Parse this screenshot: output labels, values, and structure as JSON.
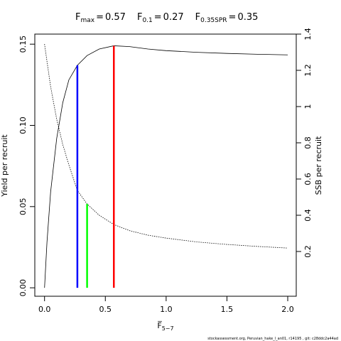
{
  "chart_data": {
    "type": "line",
    "relation": "=",
    "reference_lines": [
      {
        "label": "F",
        "sub": "max",
        "x": 0.57,
        "top": 0.149,
        "color": "#ff0000"
      },
      {
        "label": "F",
        "sub": "0.1",
        "x": 0.27,
        "top": 0.137,
        "color": "#0000ff"
      },
      {
        "label": "F",
        "sub": "0.35SPR",
        "x": 0.35,
        "top": 0.0516,
        "color": "#00ff00"
      }
    ],
    "xlabel": "F̅",
    "xlabel_sub": "5−7",
    "ylabel": "Yield per recruit",
    "y2label": "SSB per recruit",
    "footer": "stockassessment.org, Peruvian_hake_l_an01, r14195 , git: c28ddc2a44ad",
    "x": [
      0,
      0.02,
      0.05,
      0.1,
      0.15,
      0.2,
      0.27,
      0.35,
      0.45,
      0.57,
      0.7,
      0.85,
      1.0,
      1.25,
      1.5,
      1.75,
      2.0
    ],
    "series": [
      {
        "name": "Yield per recruit",
        "color": "#000000",
        "dash": "solid",
        "values": [
          0,
          0.028,
          0.059,
          0.092,
          0.114,
          0.128,
          0.137,
          0.143,
          0.147,
          0.149,
          0.1485,
          0.147,
          0.146,
          0.145,
          0.1443,
          0.1438,
          0.1434
        ]
      },
      {
        "name": "SSB per recruit",
        "color": "#000000",
        "dash": "dotted",
        "axis": "y2",
        "values": [
          1.345,
          1.25,
          1.11,
          0.93,
          0.79,
          0.678,
          0.537,
          0.462,
          0.4,
          0.349,
          0.315,
          0.29,
          0.274,
          0.253,
          0.239,
          0.228,
          0.219
        ]
      }
    ],
    "xlim": [
      -0.08,
      2.07
    ],
    "xticks": [
      {
        "value": 0,
        "label": "0.0"
      },
      0.5,
      {
        "value": 1,
        "label": "1.0"
      },
      1.5,
      {
        "value": 2,
        "label": "2.0"
      }
    ],
    "ylim": [
      -0.0052,
      0.1562
    ],
    "yticks": [
      {
        "value": 0,
        "label": "0.00"
      },
      0.05,
      {
        "value": 0.1,
        "label": "0.10"
      },
      0.15
    ],
    "y2lim": [
      -0.047,
      1.4
    ],
    "y2ticks": [
      0.2,
      0.4,
      0.6,
      0.8,
      1,
      1.2,
      1.4
    ]
  }
}
